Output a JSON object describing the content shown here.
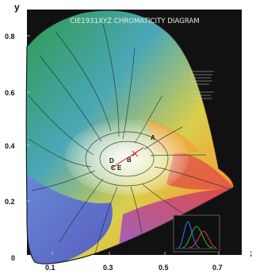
{
  "title": "CIE1931XYZ CHROMATICITY DIAGRAM",
  "axis": {
    "y_title": "y",
    "y_ticks": [
      "0.8",
      "0.6",
      "0.4",
      "0.2",
      "0"
    ],
    "x_ticks": [
      "0.1",
      "0.3",
      "0.5",
      "0.7"
    ],
    "trailing_mark": ";"
  },
  "point_labels": [
    "A",
    "B",
    "C",
    "D",
    "E"
  ],
  "colors": {
    "background": "#111111",
    "green": "#2f9a4c",
    "cyan": "#4aa7b7",
    "blue": "#4e56c8",
    "purple": "#9a58c8",
    "red": "#e04444",
    "orange": "#f0a33a",
    "yellow": "#d9cf4a",
    "white": "#ffffff",
    "locus_grid": "#2a2a2a"
  },
  "inset": {
    "curves": [
      {
        "name": "",
        "color": "#2f6df2"
      },
      {
        "name": "",
        "color": "#29a84a"
      },
      {
        "name": "",
        "color": "#d33a3a"
      }
    ]
  }
}
